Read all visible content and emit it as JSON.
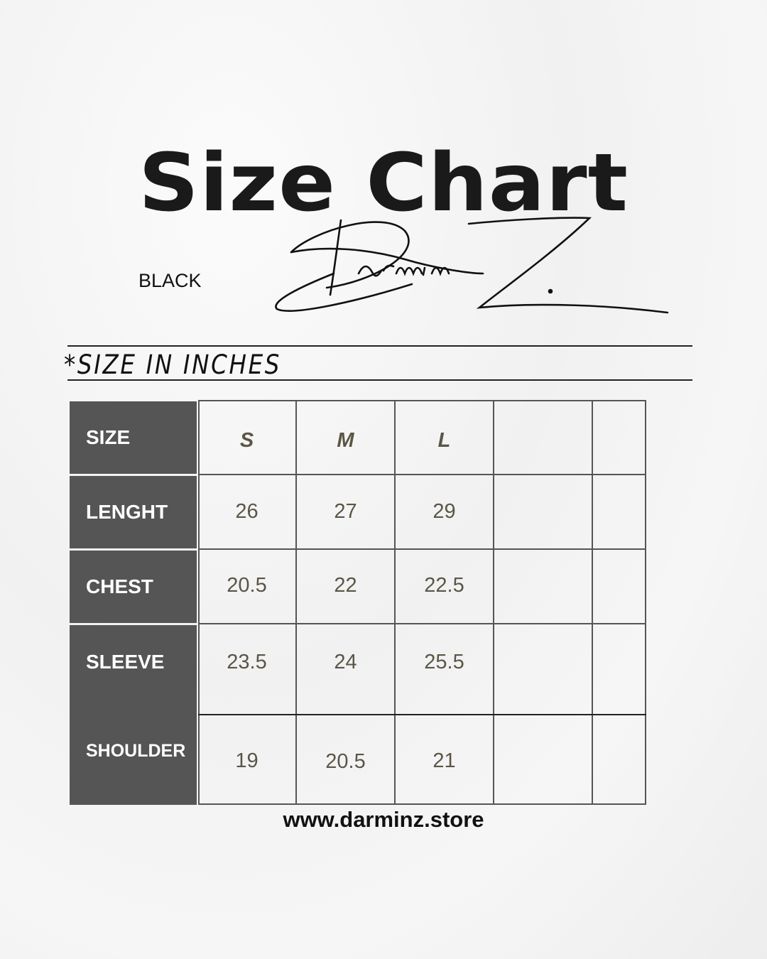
{
  "title": "Size Chart",
  "brand_logo": "DarminZ.",
  "variant": "BLACK",
  "units_note": "*SIZE IN INCHES",
  "table": {
    "header_label": "SIZE",
    "sizes": [
      "S",
      "M",
      "L",
      "",
      ""
    ],
    "rows": [
      {
        "label": "LENGHT",
        "values": [
          "26",
          "27",
          "29",
          "",
          ""
        ]
      },
      {
        "label": "CHEST",
        "values": [
          "20.5",
          "22",
          "22.5",
          "",
          ""
        ]
      },
      {
        "label": "SLEEVE",
        "values": [
          "23.5",
          "24",
          "25.5",
          "",
          ""
        ]
      },
      {
        "label": "SHOULDER",
        "values": [
          "19",
          "20.5",
          "21",
          "",
          ""
        ]
      }
    ]
  },
  "website": "www.darminz.store",
  "colors": {
    "header_bg": "#555555",
    "value_text": "#5a5646",
    "text": "#111111"
  }
}
